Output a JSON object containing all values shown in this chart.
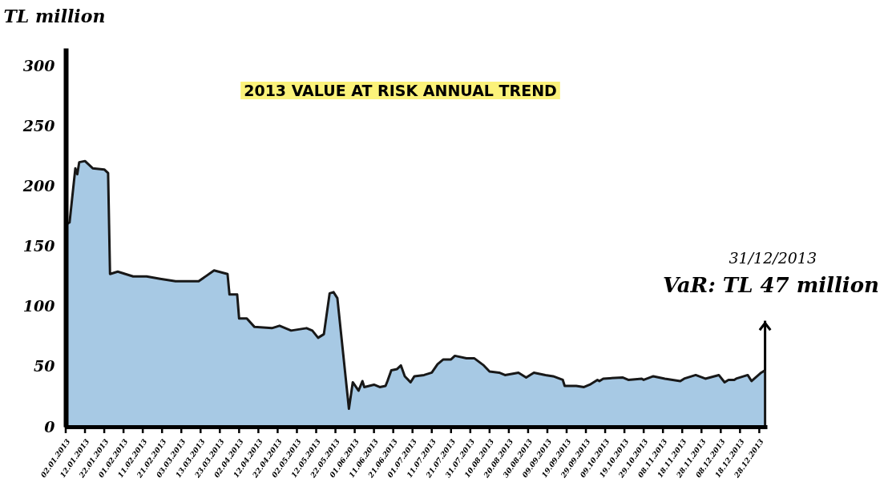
{
  "chart_data": {
    "type": "area",
    "title": "2013 VALUE AT RISK ANNUAL TREND",
    "ylabel": "TL million",
    "x": [
      "2013-01-02",
      "2013-01-04",
      "2013-01-07",
      "2013-01-08",
      "2013-01-09",
      "2013-01-12",
      "2013-01-16",
      "2013-01-22",
      "2013-01-24",
      "2013-01-25",
      "2013-01-29",
      "2013-02-06",
      "2013-02-13",
      "2013-02-20",
      "2013-02-28",
      "2013-03-12",
      "2013-03-20",
      "2013-03-27",
      "2013-03-28",
      "2013-04-01",
      "2013-04-02",
      "2013-04-06",
      "2013-04-10",
      "2013-04-19",
      "2013-04-23",
      "2013-04-29",
      "2013-05-07",
      "2013-05-10",
      "2013-05-13",
      "2013-05-16",
      "2013-05-19",
      "2013-05-21",
      "2013-05-23",
      "2013-05-29",
      "2013-05-31",
      "2013-06-03",
      "2013-06-05",
      "2013-06-06",
      "2013-06-11",
      "2013-06-14",
      "2013-06-17",
      "2013-06-18",
      "2013-06-20",
      "2013-06-23",
      "2013-06-25",
      "2013-06-27",
      "2013-06-30",
      "2013-07-02",
      "2013-07-07",
      "2013-07-11",
      "2013-07-14",
      "2013-07-17",
      "2013-07-21",
      "2013-07-23",
      "2013-07-29",
      "2013-08-02",
      "2013-08-07",
      "2013-08-10",
      "2013-08-15",
      "2013-08-18",
      "2013-08-25",
      "2013-08-29",
      "2013-09-02",
      "2013-09-08",
      "2013-09-12",
      "2013-09-17",
      "2013-09-18",
      "2013-09-24",
      "2013-09-28",
      "2013-10-01",
      "2013-10-05",
      "2013-10-06",
      "2013-10-08",
      "2013-10-18",
      "2013-10-21",
      "2013-10-28",
      "2013-10-29",
      "2013-11-03",
      "2013-11-09",
      "2013-11-17",
      "2013-11-19",
      "2013-11-25",
      "2013-11-30",
      "2013-12-07",
      "2013-12-10",
      "2013-12-12",
      "2013-12-15",
      "2013-12-16",
      "2013-12-22",
      "2013-12-24",
      "2013-12-29",
      "2013-12-31"
    ],
    "series": [
      {
        "color": "#9ec4e2",
        "values": [
          168,
          170,
          215,
          210,
          220,
          221,
          215,
          214,
          211,
          127,
          129,
          125,
          125,
          123,
          121,
          121,
          130,
          127,
          110,
          110,
          90,
          90,
          83,
          82,
          84,
          80,
          82,
          80,
          74,
          77,
          111,
          112,
          107,
          15,
          37,
          30,
          38,
          33,
          35,
          33,
          34,
          38,
          47,
          48,
          51,
          42,
          37,
          42,
          43,
          45,
          52,
          56,
          56,
          59,
          57,
          57,
          51,
          46,
          45,
          43,
          45,
          41,
          45,
          43,
          42,
          39,
          34,
          34,
          33,
          35,
          39,
          38,
          40,
          41,
          39,
          40,
          39,
          42,
          40,
          38,
          40,
          43,
          40,
          43,
          37,
          39,
          39,
          40,
          43,
          38,
          45,
          47
        ]
      }
    ],
    "xlim": [
      "2013-01-02",
      "2014-01-01"
    ],
    "xticks": [
      {
        "value": "2013-01-02",
        "label": "02.01.2013"
      },
      {
        "value": "2013-01-12",
        "label": "12.01.2013"
      },
      {
        "value": "2013-01-22",
        "label": "22.01.2013"
      },
      {
        "value": "2013-02-01",
        "label": "01.02.2013"
      },
      {
        "value": "2013-02-11",
        "label": "11.02.2013"
      },
      {
        "value": "2013-02-21",
        "label": "21.02.2013"
      },
      {
        "value": "2013-03-03",
        "label": "03.03.2013"
      },
      {
        "value": "2013-03-13",
        "label": "13.03.2013"
      },
      {
        "value": "2013-03-23",
        "label": "23.03.2013"
      },
      {
        "value": "2013-04-02",
        "label": "02.04.2013"
      },
      {
        "value": "2013-04-12",
        "label": "12.04.2013"
      },
      {
        "value": "2013-04-22",
        "label": "22.04.2013"
      },
      {
        "value": "2013-05-02",
        "label": "02.05.2013"
      },
      {
        "value": "2013-05-12",
        "label": "12.05.2013"
      },
      {
        "value": "2013-05-22",
        "label": "22.05.2013"
      },
      {
        "value": "2013-06-01",
        "label": "01.06.2013"
      },
      {
        "value": "2013-06-11",
        "label": "11.06.2013"
      },
      {
        "value": "2013-06-21",
        "label": "21.06.2013"
      },
      {
        "value": "2013-07-01",
        "label": "01.07.2013"
      },
      {
        "value": "2013-07-11",
        "label": "11.07.2013"
      },
      {
        "value": "2013-07-21",
        "label": "21.07.2013"
      },
      {
        "value": "2013-07-31",
        "label": "31.07.2013"
      },
      {
        "value": "2013-08-10",
        "label": "10.08.2013"
      },
      {
        "value": "2013-08-20",
        "label": "20.08.2013"
      },
      {
        "value": "2013-08-30",
        "label": "30.08.2013"
      },
      {
        "value": "2013-09-09",
        "label": "09.09.2013"
      },
      {
        "value": "2013-09-19",
        "label": "19.09.2013"
      },
      {
        "value": "2013-09-29",
        "label": "29.09.2013"
      },
      {
        "value": "2013-10-09",
        "label": "09.10.2013"
      },
      {
        "value": "2013-10-19",
        "label": "19.10.2013"
      },
      {
        "value": "2013-10-29",
        "label": "29.10.2013"
      },
      {
        "value": "2013-11-08",
        "label": "08.11.2013"
      },
      {
        "value": "2013-11-18",
        "label": "18.11.2013"
      },
      {
        "value": "2013-11-28",
        "label": "28.11.2013"
      },
      {
        "value": "2013-12-08",
        "label": "08.12.2013"
      },
      {
        "value": "2013-12-18",
        "label": "18.12.2013"
      },
      {
        "value": "2013-12-28",
        "label": "28.12.2013"
      }
    ],
    "ylim": [
      0,
      315
    ],
    "yticks": [
      0,
      50,
      100,
      150,
      200,
      250,
      300
    ],
    "annotations": [
      "31/12/2013",
      {
        "text": "VaR: TL 47 million",
        "x": "2013-12-31",
        "y": 47
      }
    ],
    "grid": false,
    "legend": false,
    "line_style": "solid",
    "marker": "none"
  }
}
